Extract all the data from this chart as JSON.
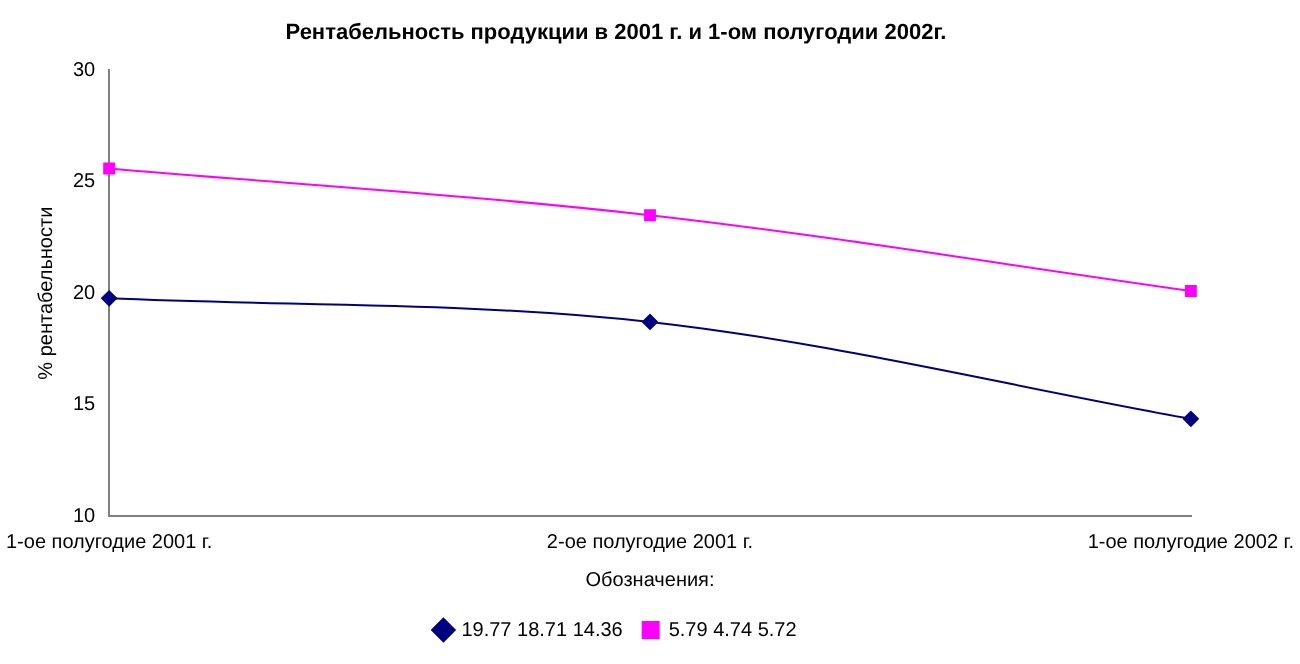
{
  "chart_data": {
    "type": "line",
    "title": "Рентабельность продукции в 2001 г. и 1-ом полугодии 2002г.",
    "xlabel": "Обозначения:",
    "ylabel": "% рентабельности",
    "categories": [
      "1-ое полугодие 2001 г.",
      "2-ое полугодие 2001 г.",
      "1-ое полугодие 2002 г."
    ],
    "series": [
      {
        "name": "19.77 18.71 14.36",
        "color": "#000080",
        "values": [
          19.77,
          18.71,
          14.36
        ],
        "marker": "diamond"
      },
      {
        "name": "5.79 4.74 5.72",
        "color": "#ff00ff",
        "values": [
          25.6,
          23.5,
          20.1
        ],
        "marker": "square"
      }
    ],
    "ylim": [
      10,
      30
    ],
    "yticks": [
      10,
      15,
      20,
      25,
      30
    ],
    "grid": false,
    "legend": "bottom"
  }
}
